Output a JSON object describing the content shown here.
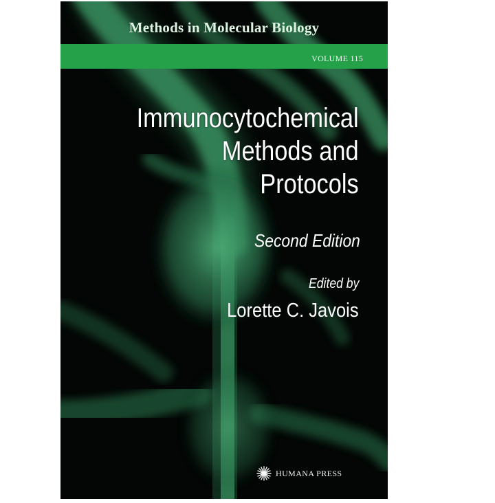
{
  "cover": {
    "series_title": "Methods in Molecular Biology",
    "volume": "VOLUME 115",
    "title_lines": [
      "Immunocytochemical",
      "Methods and",
      "Protocols"
    ],
    "edition": "Second Edition",
    "edited_by": "Edited by",
    "editor": "Lorette C. Javois",
    "publisher": "HUMANA PRESS",
    "publisher_logo_icon": "starburst-icon"
  },
  "colors": {
    "background": "#030604",
    "band_green": "#25a14a",
    "fluorescence_green": "#3fa067",
    "text_white": "#ffffff"
  }
}
